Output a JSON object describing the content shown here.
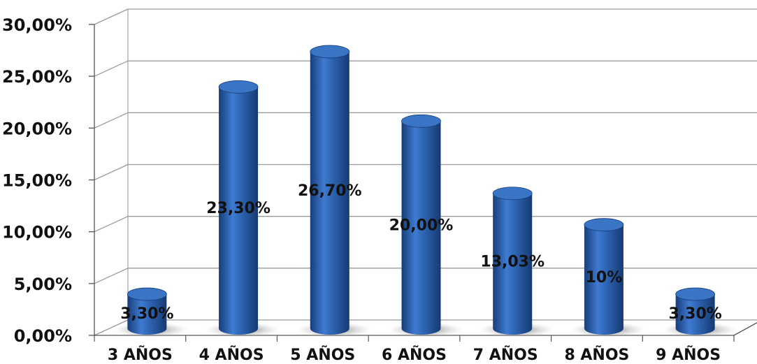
{
  "chart_data": {
    "type": "bar",
    "title": "",
    "xlabel": "",
    "ylabel": "",
    "categories": [
      "3 AÑOS",
      "4 AÑOS",
      "5 AÑOS",
      "6 AÑOS",
      "7 AÑOS",
      "8 AÑOS",
      "9 AÑOS"
    ],
    "values": [
      3.3,
      23.3,
      26.7,
      20.0,
      13.03,
      10.0,
      3.3
    ],
    "data_labels": [
      "3,30%",
      "23,30%",
      "26,70%",
      "20,00%",
      "13,03%",
      "10%",
      "3,30%"
    ],
    "ylim": [
      0,
      30
    ],
    "y_ticks": [
      0,
      5,
      10,
      15,
      20,
      25,
      30
    ],
    "y_tick_labels": [
      "0,00%",
      "5,00%",
      "10,00%",
      "15,00%",
      "20,00%",
      "25,00%",
      "30,00%"
    ],
    "grid": true,
    "legend": false,
    "style": "3d-cylinder",
    "colors": {
      "bar": "#2f66b5",
      "bar_dark": "#173d7a",
      "bar_light": "#5b8fd8",
      "bar_top": "#3a74c4",
      "grid": "#9a9a9a",
      "axis": "#555555"
    }
  }
}
